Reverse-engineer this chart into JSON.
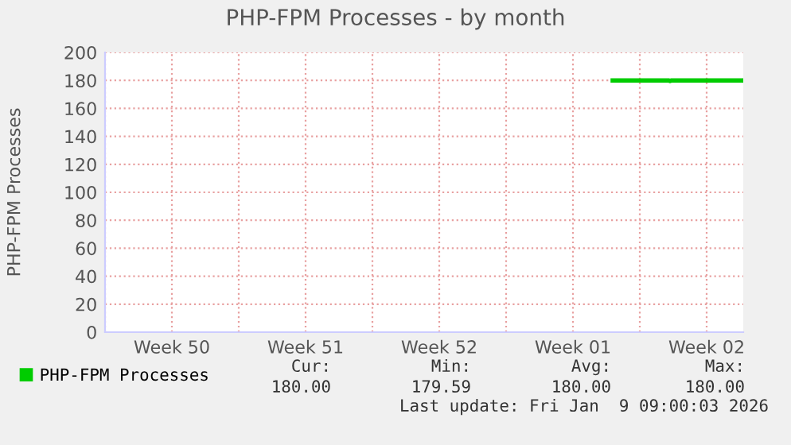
{
  "chart_data": {
    "type": "line",
    "title": "PHP-FPM Processes - by month",
    "ylabel": "PHP-FPM Processes",
    "xlim": [
      "2025-12-08",
      "2026-01-10T10:00"
    ],
    "xticks": [
      {
        "value": "2025-12-08",
        "label": null
      },
      {
        "value": "2025-12-11T12:00",
        "label": "Week 50"
      },
      {
        "value": "2025-12-15",
        "label": null
      },
      {
        "value": "2025-12-18T12:00",
        "label": "Week 51"
      },
      {
        "value": "2025-12-22",
        "label": null
      },
      {
        "value": "2025-12-25T12:00",
        "label": "Week 52"
      },
      {
        "value": "2025-12-29",
        "label": null
      },
      {
        "value": "2026-01-01T12:00",
        "label": "Week 01"
      },
      {
        "value": "2026-01-05",
        "label": null
      },
      {
        "value": "2026-01-08T12:00",
        "label": "Week 02"
      }
    ],
    "ylim": [
      0,
      200
    ],
    "yticks": [
      0,
      20,
      40,
      60,
      80,
      100,
      120,
      140,
      160,
      180,
      200
    ],
    "grid": true,
    "legend": "bottom",
    "marker": "none",
    "line_style": "solid",
    "series": [
      {
        "name": "PHP-FPM Processes",
        "color": "#00cc00",
        "x": [
          "2026-01-03T14:00",
          "2026-01-06T12:00",
          "2026-01-06T14:00",
          "2026-01-06T16:00",
          "2026-01-10T10:00"
        ],
        "values": [
          180,
          180,
          179.6,
          180,
          180
        ]
      }
    ],
    "annotations": [
      "Cur:",
      "180.00",
      "Min:",
      "179.59",
      "Avg:",
      "180.00",
      "Max:",
      "180.00",
      "Last update: Fri Jan  9 09:00:03 2026"
    ]
  }
}
